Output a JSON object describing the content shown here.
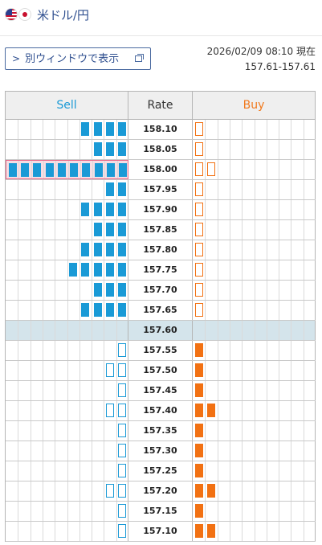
{
  "header": {
    "title": "米ドル/円",
    "flags": [
      "us-flag-icon",
      "jp-flag-icon"
    ]
  },
  "toolbar": {
    "open_window_label": "別ウィンドウで表示"
  },
  "quote": {
    "timestamp": "2026/02/09 08:10 現在",
    "bid_ask": "157.61-157.61"
  },
  "columns": {
    "sell": "Sell",
    "rate": "Rate",
    "buy": "Buy"
  },
  "colors": {
    "sell": "#1a9ad6",
    "buy": "#f27113",
    "current_row": "#d4e4eb",
    "highlight_border": "#e86a8a"
  },
  "rows": [
    {
      "rate": "158.10",
      "sell": 4,
      "sell_filled": true,
      "buy": 1,
      "buy_filled": false
    },
    {
      "rate": "158.05",
      "sell": 3,
      "sell_filled": true,
      "buy": 1,
      "buy_filled": false
    },
    {
      "rate": "158.00",
      "sell": 10,
      "sell_filled": true,
      "buy": 2,
      "buy_filled": false,
      "highlight": true
    },
    {
      "rate": "157.95",
      "sell": 2,
      "sell_filled": true,
      "buy": 1,
      "buy_filled": false
    },
    {
      "rate": "157.90",
      "sell": 4,
      "sell_filled": true,
      "buy": 1,
      "buy_filled": false
    },
    {
      "rate": "157.85",
      "sell": 3,
      "sell_filled": true,
      "buy": 1,
      "buy_filled": false
    },
    {
      "rate": "157.80",
      "sell": 4,
      "sell_filled": true,
      "buy": 1,
      "buy_filled": false
    },
    {
      "rate": "157.75",
      "sell": 5,
      "sell_filled": true,
      "buy": 1,
      "buy_filled": false
    },
    {
      "rate": "157.70",
      "sell": 3,
      "sell_filled": true,
      "buy": 1,
      "buy_filled": false
    },
    {
      "rate": "157.65",
      "sell": 4,
      "sell_filled": true,
      "buy": 1,
      "buy_filled": false
    },
    {
      "rate": "157.60",
      "sell": 0,
      "sell_filled": true,
      "buy": 0,
      "buy_filled": true,
      "current": true
    },
    {
      "rate": "157.55",
      "sell": 1,
      "sell_filled": false,
      "buy": 1,
      "buy_filled": true
    },
    {
      "rate": "157.50",
      "sell": 2,
      "sell_filled": false,
      "buy": 1,
      "buy_filled": true
    },
    {
      "rate": "157.45",
      "sell": 1,
      "sell_filled": false,
      "buy": 1,
      "buy_filled": true
    },
    {
      "rate": "157.40",
      "sell": 2,
      "sell_filled": false,
      "buy": 2,
      "buy_filled": true
    },
    {
      "rate": "157.35",
      "sell": 1,
      "sell_filled": false,
      "buy": 1,
      "buy_filled": true
    },
    {
      "rate": "157.30",
      "sell": 1,
      "sell_filled": false,
      "buy": 1,
      "buy_filled": true
    },
    {
      "rate": "157.25",
      "sell": 1,
      "sell_filled": false,
      "buy": 1,
      "buy_filled": true
    },
    {
      "rate": "157.20",
      "sell": 2,
      "sell_filled": false,
      "buy": 2,
      "buy_filled": true
    },
    {
      "rate": "157.15",
      "sell": 1,
      "sell_filled": false,
      "buy": 1,
      "buy_filled": true
    },
    {
      "rate": "157.10",
      "sell": 1,
      "sell_filled": false,
      "buy": 2,
      "buy_filled": true
    }
  ]
}
